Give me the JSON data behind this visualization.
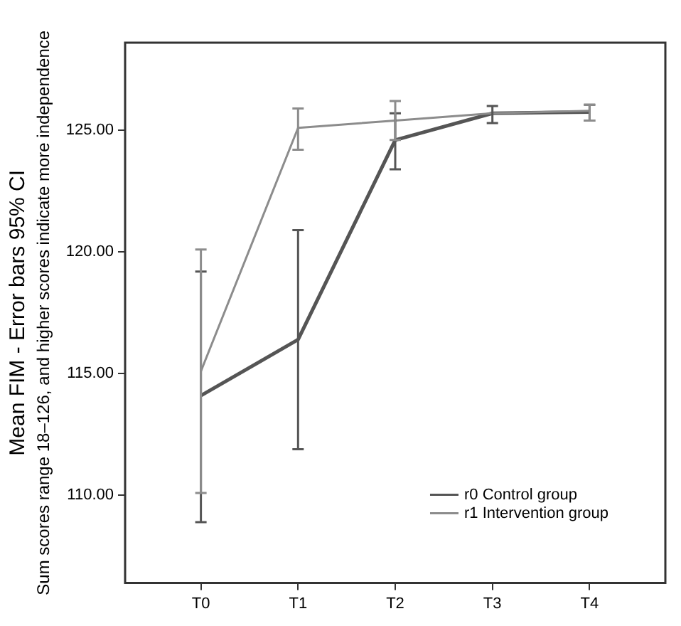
{
  "chart_data": {
    "type": "line",
    "ylabel": "Mean FIM - Error bars 95% CI",
    "annotations": [
      "Sum scores range 18–126, and higher scores indicate more independence"
    ],
    "categories": [
      "T0",
      "T1",
      "T2",
      "T3",
      "T4"
    ],
    "series": [
      {
        "name": "r0 Control group",
        "color": "#555555",
        "values": [
          114.1,
          116.4,
          124.6,
          125.7,
          125.75
        ],
        "errors": [
          [
            108.9,
            119.2
          ],
          [
            111.9,
            120.9
          ],
          [
            123.4,
            125.7
          ],
          [
            125.3,
            126.0
          ],
          [
            125.4,
            126.05
          ]
        ]
      },
      {
        "name": "r1 Intervention group",
        "color": "#8c8c8c",
        "values": [
          115.1,
          125.1,
          125.4,
          125.7,
          125.8
        ],
        "errors": [
          [
            110.1,
            120.1
          ],
          [
            124.2,
            125.9
          ],
          [
            124.6,
            126.2
          ],
          null,
          [
            125.4,
            126.05
          ]
        ]
      }
    ],
    "ylim": [
      106.4,
      128.6
    ],
    "yticks": [
      {
        "value": 110,
        "label": "110.00"
      },
      {
        "value": 115,
        "label": "115.00"
      },
      {
        "value": 120,
        "label": "120.00"
      },
      {
        "value": 125,
        "label": "125.00"
      }
    ],
    "grid": false,
    "legend": "bottom right",
    "marker": "none",
    "line_style": "solid"
  }
}
